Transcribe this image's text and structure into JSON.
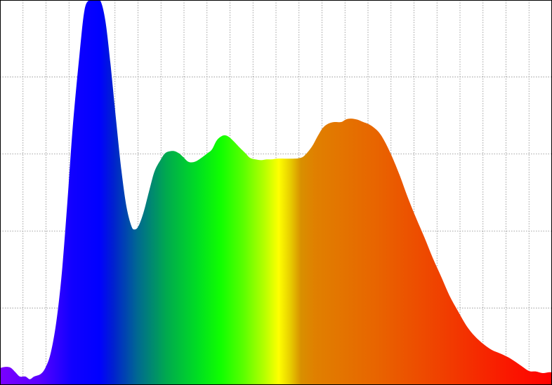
{
  "chart_data": {
    "type": "area",
    "title": "",
    "xlabel": "",
    "ylabel": "",
    "grid": true,
    "legend": "none",
    "xlim": [
      0,
      100
    ],
    "ylim": [
      0,
      100
    ],
    "x_grid_count": 24,
    "y_grid_count": 5,
    "series": [
      {
        "fill": "spectral-gradient",
        "points": [
          [
            0.0,
            4.4
          ],
          [
            0.9,
            4.7
          ],
          [
            1.9,
            4.5
          ],
          [
            2.8,
            3.3
          ],
          [
            3.6,
            2.2
          ],
          [
            4.6,
            2.2
          ],
          [
            5.4,
            1.5
          ],
          [
            6.2,
            2.2
          ],
          [
            7.4,
            2.9
          ],
          [
            8.3,
            4.7
          ],
          [
            9.2,
            8.4
          ],
          [
            10.2,
            16.4
          ],
          [
            11.2,
            29.1
          ],
          [
            12.2,
            47.4
          ],
          [
            13.2,
            67.4
          ],
          [
            14.4,
            85.8
          ],
          [
            15.3,
            97.3
          ],
          [
            16.2,
            100.0
          ],
          [
            17.2,
            100.0
          ],
          [
            18.2,
            99.8
          ],
          [
            19.1,
            94.5
          ],
          [
            20.0,
            83.6
          ],
          [
            21.0,
            69.2
          ],
          [
            22.0,
            55.7
          ],
          [
            22.9,
            46.4
          ],
          [
            23.8,
            41.3
          ],
          [
            24.4,
            40.4
          ],
          [
            25.1,
            41.3
          ],
          [
            26.0,
            44.8
          ],
          [
            27.0,
            50.3
          ],
          [
            28.0,
            55.5
          ],
          [
            29.1,
            58.5
          ],
          [
            30.0,
            60.3
          ],
          [
            31.3,
            60.8
          ],
          [
            32.3,
            60.3
          ],
          [
            33.2,
            59.2
          ],
          [
            34.1,
            58.0
          ],
          [
            35.1,
            57.9
          ],
          [
            36.1,
            58.6
          ],
          [
            37.5,
            60.1
          ],
          [
            38.4,
            61.2
          ],
          [
            39.3,
            63.6
          ],
          [
            40.4,
            64.8
          ],
          [
            41.3,
            64.6
          ],
          [
            42.2,
            63.5
          ],
          [
            43.4,
            61.7
          ],
          [
            44.4,
            60.3
          ],
          [
            45.3,
            59.0
          ],
          [
            46.3,
            58.6
          ],
          [
            47.3,
            58.4
          ],
          [
            48.3,
            58.6
          ],
          [
            49.2,
            58.6
          ],
          [
            50.2,
            58.8
          ],
          [
            51.8,
            58.8
          ],
          [
            53.1,
            58.8
          ],
          [
            54.1,
            58.9
          ],
          [
            55.1,
            59.5
          ],
          [
            56.5,
            61.9
          ],
          [
            57.5,
            64.5
          ],
          [
            58.5,
            66.8
          ],
          [
            59.5,
            67.9
          ],
          [
            60.6,
            68.3
          ],
          [
            61.8,
            68.3
          ],
          [
            62.7,
            69.0
          ],
          [
            63.6,
            69.2
          ],
          [
            64.8,
            68.9
          ],
          [
            65.8,
            68.3
          ],
          [
            66.7,
            67.8
          ],
          [
            67.6,
            67.0
          ],
          [
            68.6,
            65.7
          ],
          [
            69.6,
            63.5
          ],
          [
            70.9,
            59.7
          ],
          [
            72.4,
            54.5
          ],
          [
            73.8,
            49.0
          ],
          [
            75.4,
            43.3
          ],
          [
            76.9,
            38.3
          ],
          [
            78.4,
            33.0
          ],
          [
            80.0,
            27.9
          ],
          [
            81.4,
            23.3
          ],
          [
            83.0,
            19.1
          ],
          [
            84.5,
            15.4
          ],
          [
            86.0,
            12.7
          ],
          [
            87.6,
            10.6
          ],
          [
            89.1,
            9.1
          ],
          [
            90.6,
            8.2
          ],
          [
            92.2,
            7.1
          ],
          [
            93.6,
            5.8
          ],
          [
            94.7,
            4.7
          ],
          [
            95.9,
            3.6
          ],
          [
            97.1,
            3.5
          ],
          [
            98.3,
            3.1
          ],
          [
            99.4,
            3.3
          ],
          [
            100.0,
            3.3
          ]
        ]
      }
    ],
    "colors": {
      "background": "#ffffff",
      "grid": "#8a8a8a",
      "gradient_stops": [
        {
          "at": 0.0,
          "color": "#7a00ff"
        },
        {
          "at": 0.07,
          "color": "#5a00ff"
        },
        {
          "at": 0.13,
          "color": "#1000ff"
        },
        {
          "at": 0.18,
          "color": "#0000ff"
        },
        {
          "at": 0.205,
          "color": "#0020d0"
        },
        {
          "at": 0.25,
          "color": "#006a90"
        },
        {
          "at": 0.3,
          "color": "#00a850"
        },
        {
          "at": 0.36,
          "color": "#00e020"
        },
        {
          "at": 0.4,
          "color": "#10ff00"
        },
        {
          "at": 0.44,
          "color": "#58ff00"
        },
        {
          "at": 0.48,
          "color": "#b8ff00"
        },
        {
          "at": 0.505,
          "color": "#ffff00"
        },
        {
          "at": 0.525,
          "color": "#e8d000"
        },
        {
          "at": 0.545,
          "color": "#d89000"
        },
        {
          "at": 0.57,
          "color": "#e08000"
        },
        {
          "at": 0.68,
          "color": "#e86500"
        },
        {
          "at": 0.8,
          "color": "#f04000"
        },
        {
          "at": 0.92,
          "color": "#fa1800"
        },
        {
          "at": 1.0,
          "color": "#ff0000"
        }
      ]
    }
  }
}
